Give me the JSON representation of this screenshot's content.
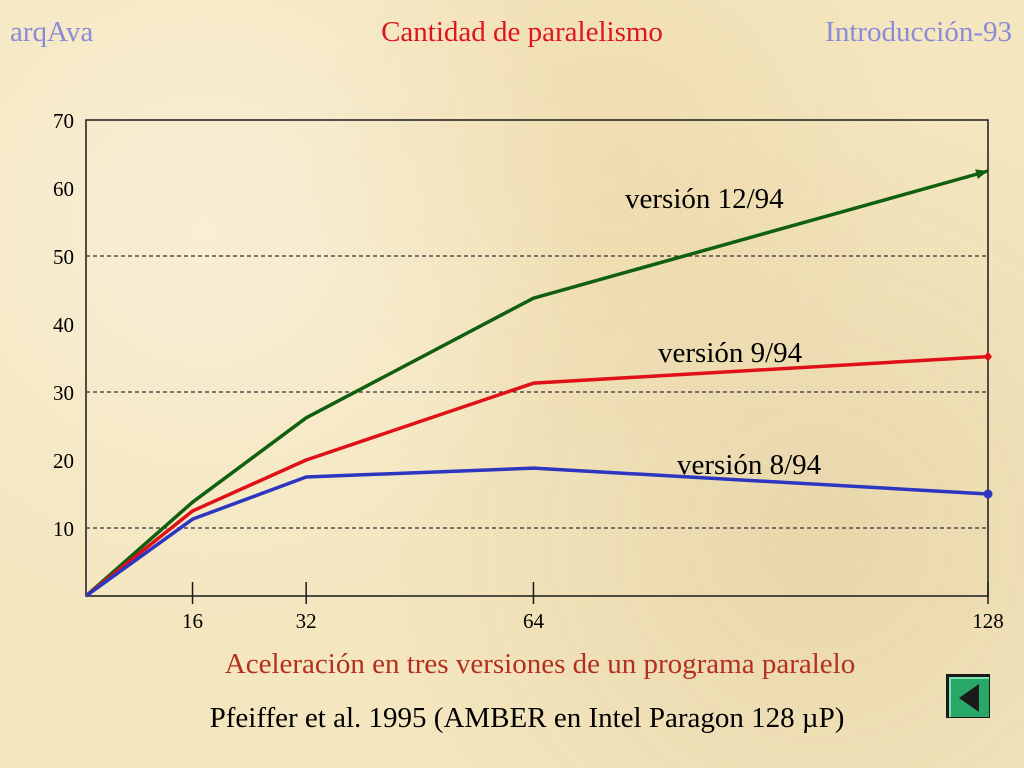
{
  "header": {
    "left": "arqAva",
    "center": "Cantidad de paralelismo",
    "right": "Introducción-93"
  },
  "caption": "Aceleración en tres versiones de un programa paralelo",
  "source": "Pfeiffer et al. 1995 (AMBER en Intel Paragon 128 µP)",
  "nav": {
    "back_icon": "triangle-left-icon"
  },
  "colors": {
    "v12": "#106010",
    "v9": "#e01018",
    "v8": "#2c36c0",
    "grid": "#333333"
  },
  "chart_data": {
    "type": "line",
    "x_ticks": [
      16,
      32,
      64,
      128
    ],
    "y_ticks": [
      10,
      20,
      30,
      40,
      50,
      60,
      70
    ],
    "xlim": [
      1,
      128
    ],
    "ylim": [
      0,
      70
    ],
    "grid_y": [
      10,
      30,
      50
    ],
    "series": [
      {
        "name": "versión 12/94",
        "x": [
          1,
          16,
          32,
          64,
          128
        ],
        "y": [
          0,
          13.8,
          26.2,
          43.8,
          62.5
        ],
        "marker": "arrow",
        "color": "#106010"
      },
      {
        "name": "versión 9/94",
        "x": [
          1,
          16,
          32,
          64,
          128
        ],
        "y": [
          0,
          12.5,
          20,
          31.3,
          35.2
        ],
        "marker": "diamond",
        "color": "#e01018"
      },
      {
        "name": "versión 8/94",
        "x": [
          1,
          16,
          32,
          64,
          128
        ],
        "y": [
          0,
          11.3,
          17.5,
          18.8,
          15
        ],
        "marker": "circle",
        "color": "#2c36c0"
      }
    ]
  }
}
